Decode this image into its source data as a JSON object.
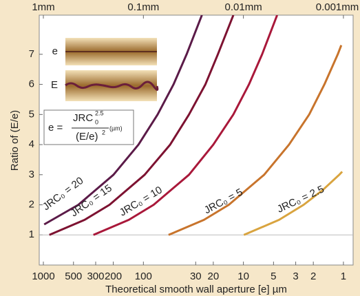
{
  "chart_data": {
    "type": "line",
    "xlabel": "Theoretical smooth wall aperture [e] µm",
    "ylabel": "Ratio of (E/e)",
    "log_x": true,
    "xlim": [
      1100,
      0.8
    ],
    "ylim": [
      0,
      8.3
    ],
    "xticks": [
      1000,
      500,
      300,
      200,
      100,
      30,
      20,
      10,
      5,
      3,
      2,
      1
    ],
    "yticks": [
      1,
      2,
      3,
      4,
      5,
      6,
      7
    ],
    "top_ticks": [
      {
        "value": 1000,
        "label": "1mm"
      },
      {
        "value": 100,
        "label": "0.1mm"
      },
      {
        "value": 10,
        "label": "0.01mm"
      },
      {
        "value": 1,
        "label": "0.001mm"
      }
    ],
    "hlines": [
      1
    ],
    "series": [
      {
        "name": "JRC₀ = 20",
        "color": "#5b1b48",
        "x": [
          982,
          447,
          199,
          112,
          72,
          50,
          37,
          26
        ],
        "values": [
          1.35,
          2,
          3,
          4,
          5,
          6,
          7,
          8.3
        ]
      },
      {
        "name": "JRC₀ = 15",
        "color": "#7d1231",
        "x": [
          871,
          387,
          218,
          97,
          54,
          35,
          24,
          18,
          12.6
        ],
        "values": [
          1,
          1.5,
          2,
          3,
          4,
          5,
          6,
          7,
          8.3
        ]
      },
      {
        "name": "JRC₀ = 10",
        "color": "#a9183a",
        "x": [
          316,
          140,
          79,
          35,
          20,
          12.6,
          8.8,
          6.5,
          4.6
        ],
        "values": [
          1,
          1.5,
          2,
          3,
          4,
          5,
          6,
          7,
          8.3
        ]
      },
      {
        "name": "JRC₀ = 5",
        "color": "#c8742c",
        "x": [
          56,
          24.8,
          14,
          6.2,
          3.5,
          2.2,
          1.55,
          1.14,
          1.05
        ],
        "values": [
          1,
          1.5,
          2,
          3,
          4,
          5,
          6,
          7,
          7.3
        ]
      },
      {
        "name": "JRC₀ = 2.5",
        "color": "#d9a43f",
        "x": [
          9.9,
          4.4,
          2.5,
          1.6,
          1.1,
          1.03
        ],
        "values": [
          1,
          1.5,
          2,
          2.5,
          3,
          3.1
        ]
      }
    ],
    "inset": {
      "small_label": "e",
      "large_label": "E"
    },
    "formula": {
      "lhs": "e =",
      "numerator": "JRC",
      "sub": "0",
      "sup": "2.5",
      "denominator": "(E/e)",
      "den_sup": "2",
      "unit": "(µm)"
    }
  }
}
